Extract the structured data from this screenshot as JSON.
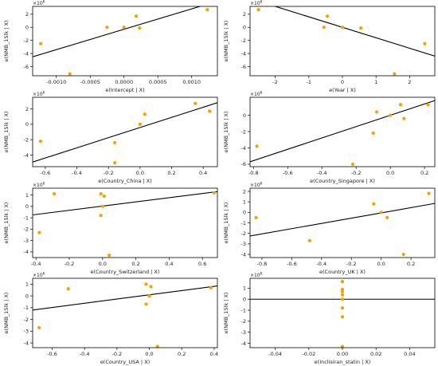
{
  "colors": {
    "point": "#f5a100",
    "line": "#000000",
    "axis": "#000000"
  },
  "chart_data": [
    {
      "type": "scatter",
      "xlabel": "e(Intercept | X)",
      "ylabel": "e(NMB_15lk | X)",
      "offset_label": "1e6",
      "xlim": [
        -0.00135,
        0.00138
      ],
      "ylim": [
        -7.4,
        3.2
      ],
      "xticks": [
        -0.001,
        -0.0005,
        0.0,
        0.0005,
        0.001
      ],
      "xtick_labels": [
        "-0.0010",
        "-0.0005",
        "0.0000",
        "0.0005",
        "0.0010"
      ],
      "yticks": [
        -6,
        -4,
        -2,
        0,
        2
      ],
      "ytick_labels": [
        "-6",
        "-4",
        "-2",
        "0",
        "2"
      ],
      "points": [
        [
          -0.00123,
          -2.5
        ],
        [
          -0.0008,
          -7.1
        ],
        [
          -0.00025,
          0.0
        ],
        [
          0.0,
          0.0
        ],
        [
          0.00018,
          1.7
        ],
        [
          0.00023,
          -0.1
        ],
        [
          0.00123,
          2.7
        ]
      ],
      "fit_line": [
        [
          -0.00135,
          -4.5
        ],
        [
          0.00138,
          4.0
        ]
      ]
    },
    {
      "type": "scatter",
      "xlabel": "e(Year | X)",
      "ylabel": "e(NMB_15lk | X)",
      "offset_label": "1e6",
      "xlim": [
        -2.75,
        2.75
      ],
      "ylim": [
        -7.4,
        3.2
      ],
      "xticks": [
        -2,
        -1,
        0,
        1,
        2
      ],
      "xtick_labels": [
        "-2",
        "-1",
        "0",
        "1",
        "2"
      ],
      "yticks": [
        -6,
        -4,
        -2,
        0,
        2
      ],
      "ytick_labels": [
        "-6",
        "-4",
        "-2",
        "0",
        "2"
      ],
      "points": [
        [
          -2.5,
          2.7
        ],
        [
          -0.55,
          0.0
        ],
        [
          -0.45,
          1.7
        ],
        [
          0.0,
          0.0
        ],
        [
          0.55,
          -0.1
        ],
        [
          1.55,
          -7.1
        ],
        [
          2.45,
          -2.5
        ]
      ],
      "fit_line": [
        [
          -2.75,
          4.4
        ],
        [
          2.75,
          -4.4
        ]
      ]
    },
    {
      "type": "scatter",
      "xlabel": "e(Country_China | X)",
      "ylabel": "e(NMB_15lk | X)",
      "offset_label": "1e6",
      "xlim": [
        -0.68,
        0.49
      ],
      "ylim": [
        -5.5,
        3.5
      ],
      "xticks": [
        -0.6,
        -0.4,
        -0.2,
        0.0,
        0.2,
        0.4
      ],
      "xtick_labels": [
        "-0.6",
        "-0.4",
        "-0.2",
        "0.0",
        "0.2",
        "0.4"
      ],
      "yticks": [
        -4,
        -2,
        0,
        2
      ],
      "ytick_labels": [
        "-4",
        "-2",
        "0",
        "2"
      ],
      "points": [
        [
          -0.63,
          -2.2
        ],
        [
          -0.16,
          -2.4
        ],
        [
          -0.16,
          -5.0
        ],
        [
          0.0,
          0.0
        ],
        [
          0.03,
          1.3
        ],
        [
          0.35,
          2.7
        ],
        [
          0.44,
          1.7
        ]
      ],
      "fit_line": [
        [
          -0.68,
          -4.9
        ],
        [
          0.49,
          2.8
        ]
      ]
    },
    {
      "type": "scatter",
      "xlabel": "e(Country_Singapore | X)",
      "ylabel": "e(NMB_15lk | X)",
      "offset_label": "1e6",
      "xlim": [
        -0.82,
        0.26
      ],
      "ylim": [
        -6.3,
        2.2
      ],
      "xticks": [
        -0.8,
        -0.6,
        -0.4,
        -0.2,
        0.0,
        0.2
      ],
      "xtick_labels": [
        "-0.8",
        "-0.6",
        "-0.4",
        "-0.2",
        "0.0",
        "0.2"
      ],
      "yticks": [
        -6,
        -4,
        -2,
        0
      ],
      "ytick_labels": [
        "-6",
        "-4",
        "-2",
        "0"
      ],
      "points": [
        [
          -0.78,
          -3.8
        ],
        [
          -0.22,
          -6.0
        ],
        [
          -0.1,
          -2.2
        ],
        [
          -0.08,
          0.4
        ],
        [
          0.0,
          0.0
        ],
        [
          0.06,
          1.3
        ],
        [
          0.08,
          -0.4
        ],
        [
          0.22,
          1.3
        ]
      ],
      "fit_line": [
        [
          -0.82,
          -5.7
        ],
        [
          0.26,
          1.8
        ]
      ]
    },
    {
      "type": "scatter",
      "xlabel": "e(Country_Switzerland | X)",
      "ylabel": "e(NMB_15lk | X)",
      "offset_label": "1e6",
      "xlim": [
        -0.42,
        0.69
      ],
      "ylim": [
        -4.5,
        1.6
      ],
      "xticks": [
        -0.4,
        -0.2,
        0.0,
        0.2,
        0.4,
        0.6
      ],
      "xtick_labels": [
        "-0.4",
        "-0.2",
        "0.0",
        "0.2",
        "0.4",
        "0.6"
      ],
      "yticks": [
        -4,
        -3,
        -2,
        -1,
        0,
        1
      ],
      "ytick_labels": [
        "-4",
        "-3",
        "-2",
        "-1",
        "0",
        "1"
      ],
      "points": [
        [
          -0.38,
          -2.3
        ],
        [
          -0.29,
          1.1
        ],
        [
          -0.01,
          1.1
        ],
        [
          0.01,
          0.9
        ],
        [
          -0.01,
          -0.8
        ],
        [
          0.0,
          0.0
        ],
        [
          0.04,
          -4.3
        ],
        [
          0.67,
          1.2
        ]
      ],
      "fit_line": [
        [
          -0.42,
          -0.75
        ],
        [
          0.69,
          1.3
        ]
      ]
    },
    {
      "type": "scatter",
      "xlabel": "e(Country_UK | X)",
      "ylabel": "e(NMB_15lk | X)",
      "offset_label": "1e6",
      "xlim": [
        -0.88,
        0.36
      ],
      "ylim": [
        -4.3,
        2.3
      ],
      "xticks": [
        -0.8,
        -0.6,
        -0.4,
        -0.2,
        0.0,
        0.2
      ],
      "xtick_labels": [
        "-0.8",
        "-0.6",
        "-0.4",
        "-0.2",
        "0.0",
        "0.2"
      ],
      "yticks": [
        -4,
        -3,
        -2,
        -1,
        0,
        1,
        2
      ],
      "ytick_labels": [
        "-4",
        "-3",
        "-2",
        "-1",
        "0",
        "1",
        "2"
      ],
      "points": [
        [
          -0.84,
          -0.5
        ],
        [
          -0.48,
          -2.7
        ],
        [
          -0.05,
          0.8
        ],
        [
          0.0,
          0.0
        ],
        [
          0.04,
          -0.5
        ],
        [
          0.15,
          -4.0
        ],
        [
          0.32,
          1.8
        ]
      ],
      "fit_line": [
        [
          -0.88,
          -2.25
        ],
        [
          0.36,
          0.85
        ]
      ]
    },
    {
      "type": "scatter",
      "xlabel": "e(Country_USA | X)",
      "ylabel": "e(NMB_15lk | X)",
      "offset_label": "1e6",
      "xlim": [
        -0.72,
        0.42
      ],
      "ylim": [
        -4.4,
        1.5
      ],
      "xticks": [
        -0.6,
        -0.4,
        -0.2,
        0.0,
        0.2,
        0.4
      ],
      "xtick_labels": [
        "-0.6",
        "-0.4",
        "-0.2",
        "0.0",
        "0.2",
        "0.4"
      ],
      "yticks": [
        -4,
        -3,
        -2,
        -1,
        0,
        1
      ],
      "ytick_labels": [
        "-4",
        "-3",
        "-2",
        "-1",
        "0",
        "1"
      ],
      "points": [
        [
          -0.68,
          -2.7
        ],
        [
          -0.5,
          0.6
        ],
        [
          -0.02,
          1.0
        ],
        [
          0.01,
          0.8
        ],
        [
          -0.02,
          -0.7
        ],
        [
          0.0,
          0.0
        ],
        [
          0.05,
          -4.3
        ],
        [
          0.38,
          0.7
        ]
      ],
      "fit_line": [
        [
          -0.72,
          -1.2
        ],
        [
          0.42,
          0.85
        ]
      ]
    },
    {
      "type": "scatter",
      "xlabel": "e(Inclisiran_statin | X)",
      "ylabel": "e(NMB_15lk | X)",
      "offset_label": "1e6",
      "xlim": [
        -0.055,
        0.055
      ],
      "ylim": [
        -4.4,
        1.9
      ],
      "xticks": [
        -0.04,
        -0.02,
        0.0,
        0.02,
        0.04
      ],
      "xtick_labels": [
        "-0.04",
        "-0.02",
        "0.00",
        "0.02",
        "0.04"
      ],
      "yticks": [
        -4,
        -3,
        -2,
        -1,
        0,
        1
      ],
      "ytick_labels": [
        "-4",
        "-3",
        "-2",
        "-1",
        "0",
        "1"
      ],
      "points": [
        [
          0.0,
          1.6
        ],
        [
          0.0,
          0.9
        ],
        [
          0.0,
          0.7
        ],
        [
          0.0,
          0.4
        ],
        [
          0.0,
          0.0
        ],
        [
          0.0,
          -0.8
        ],
        [
          0.0,
          -1.6
        ],
        [
          0.0,
          -4.3
        ]
      ],
      "fit_line": [
        [
          -0.055,
          0.0
        ],
        [
          0.055,
          0.0
        ]
      ]
    }
  ]
}
